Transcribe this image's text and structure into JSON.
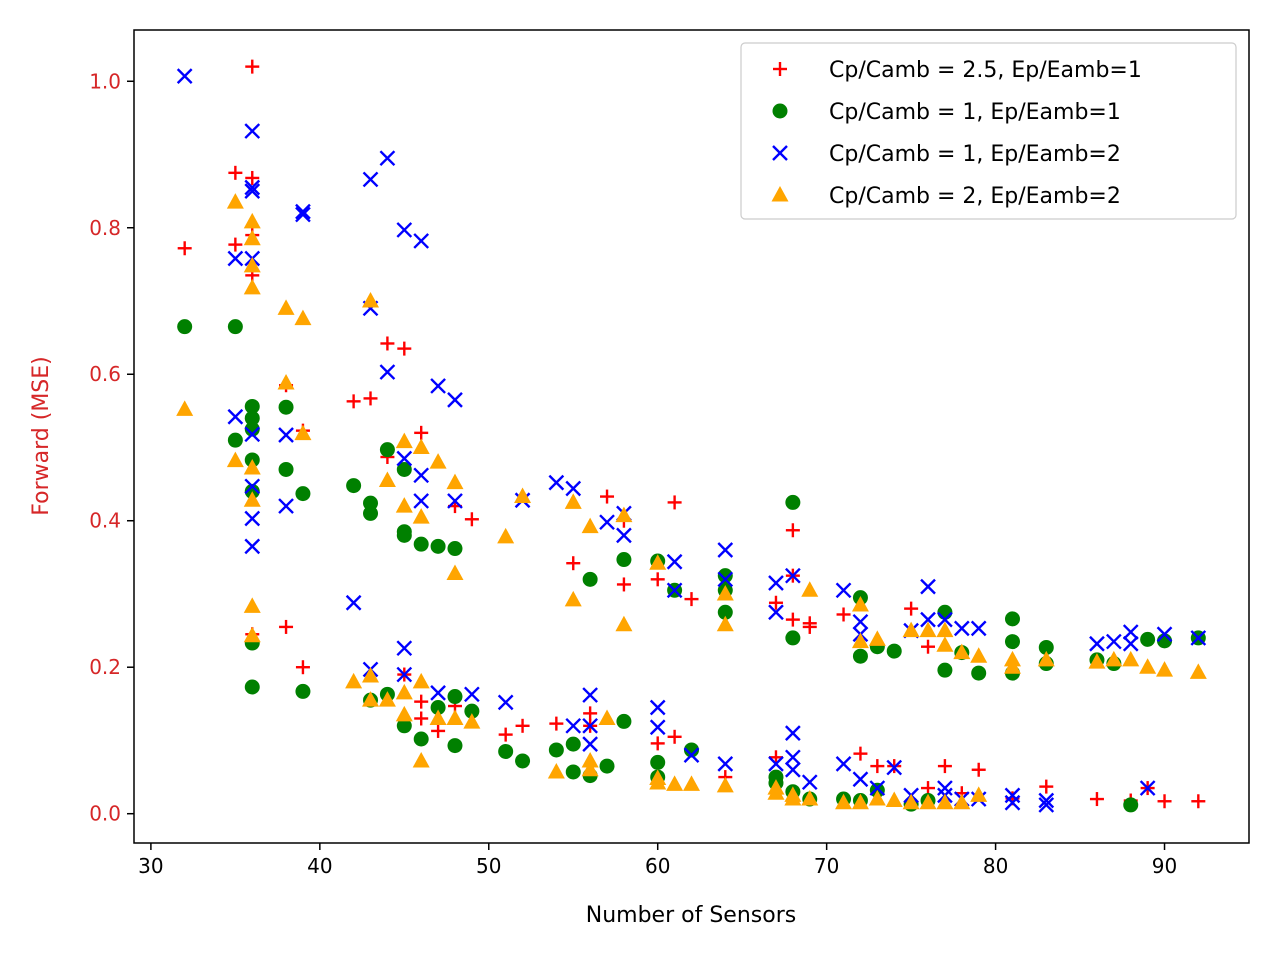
{
  "chart_data": {
    "type": "scatter",
    "title": "",
    "xlabel": "Number of Sensors",
    "ylabel": "Forward (MSE)",
    "ylabel_color": "#d62728",
    "ytick_color": "#d62728",
    "xlim": [
      29,
      95
    ],
    "ylim": [
      -0.04,
      1.07
    ],
    "xticks": [
      30,
      40,
      50,
      60,
      70,
      80,
      90
    ],
    "yticks": [
      0.0,
      0.2,
      0.4,
      0.6,
      0.8,
      1.0
    ],
    "grid": false,
    "legend_position": "top-right",
    "series": [
      {
        "name": "Cp/Camb = 2.5, Ep/Eamb=1",
        "marker": "plus",
        "color": "#ff0000",
        "points": [
          [
            32,
            0.772
          ],
          [
            35,
            0.875
          ],
          [
            35,
            0.777
          ],
          [
            36,
            1.02
          ],
          [
            36,
            0.868
          ],
          [
            36,
            0.79
          ],
          [
            36,
            0.735
          ],
          [
            36,
            0.245
          ],
          [
            38,
            0.585
          ],
          [
            38,
            0.255
          ],
          [
            39,
            0.523
          ],
          [
            39,
            0.2
          ],
          [
            42,
            0.563
          ],
          [
            43,
            0.567
          ],
          [
            44,
            0.642
          ],
          [
            44,
            0.487
          ],
          [
            45,
            0.635
          ],
          [
            45,
            0.19
          ],
          [
            46,
            0.52
          ],
          [
            46,
            0.153
          ],
          [
            46,
            0.13
          ],
          [
            47,
            0.113
          ],
          [
            48,
            0.42
          ],
          [
            48,
            0.147
          ],
          [
            49,
            0.402
          ],
          [
            51,
            0.108
          ],
          [
            52,
            0.12
          ],
          [
            54,
            0.123
          ],
          [
            55,
            0.342
          ],
          [
            56,
            0.137
          ],
          [
            56,
            0.12
          ],
          [
            57,
            0.433
          ],
          [
            58,
            0.313
          ],
          [
            58,
            0.4
          ],
          [
            60,
            0.32
          ],
          [
            60,
            0.096
          ],
          [
            61,
            0.425
          ],
          [
            61,
            0.305
          ],
          [
            61,
            0.105
          ],
          [
            62,
            0.293
          ],
          [
            64,
            0.05
          ],
          [
            67,
            0.288
          ],
          [
            67,
            0.077
          ],
          [
            68,
            0.387
          ],
          [
            68,
            0.325
          ],
          [
            68,
            0.265
          ],
          [
            69,
            0.26
          ],
          [
            69,
            0.255
          ],
          [
            71,
            0.272
          ],
          [
            72,
            0.082
          ],
          [
            73,
            0.065
          ],
          [
            74,
            0.065
          ],
          [
            75,
            0.28
          ],
          [
            76,
            0.228
          ],
          [
            76,
            0.035
          ],
          [
            77,
            0.065
          ],
          [
            78,
            0.028
          ],
          [
            79,
            0.06
          ],
          [
            81,
            0.021
          ],
          [
            83,
            0.037
          ],
          [
            86,
            0.02
          ],
          [
            88,
            0.018
          ],
          [
            89,
            0.035
          ],
          [
            90,
            0.017
          ],
          [
            92,
            0.017
          ]
        ]
      },
      {
        "name": "Cp/Camb = 1, Ep/Eamb=1",
        "marker": "circle",
        "color": "#008000",
        "points": [
          [
            32,
            0.665
          ],
          [
            35,
            0.665
          ],
          [
            35,
            0.51
          ],
          [
            36,
            0.556
          ],
          [
            36,
            0.54
          ],
          [
            36,
            0.525
          ],
          [
            36,
            0.483
          ],
          [
            36,
            0.44
          ],
          [
            36,
            0.233
          ],
          [
            36,
            0.173
          ],
          [
            38,
            0.555
          ],
          [
            38,
            0.47
          ],
          [
            39,
            0.437
          ],
          [
            39,
            0.167
          ],
          [
            42,
            0.448
          ],
          [
            43,
            0.424
          ],
          [
            43,
            0.41
          ],
          [
            43,
            0.155
          ],
          [
            44,
            0.497
          ],
          [
            44,
            0.163
          ],
          [
            45,
            0.47
          ],
          [
            45,
            0.385
          ],
          [
            45,
            0.38
          ],
          [
            45,
            0.12
          ],
          [
            46,
            0.368
          ],
          [
            46,
            0.102
          ],
          [
            47,
            0.365
          ],
          [
            47,
            0.145
          ],
          [
            48,
            0.362
          ],
          [
            48,
            0.16
          ],
          [
            48,
            0.093
          ],
          [
            49,
            0.14
          ],
          [
            51,
            0.085
          ],
          [
            52,
            0.072
          ],
          [
            54,
            0.087
          ],
          [
            55,
            0.095
          ],
          [
            55,
            0.057
          ],
          [
            56,
            0.32
          ],
          [
            56,
            0.052
          ],
          [
            57,
            0.065
          ],
          [
            58,
            0.347
          ],
          [
            58,
            0.126
          ],
          [
            60,
            0.345
          ],
          [
            60,
            0.07
          ],
          [
            60,
            0.05
          ],
          [
            61,
            0.305
          ],
          [
            62,
            0.087
          ],
          [
            64,
            0.325
          ],
          [
            64,
            0.305
          ],
          [
            64,
            0.275
          ],
          [
            67,
            0.05
          ],
          [
            67,
            0.042
          ],
          [
            68,
            0.425
          ],
          [
            68,
            0.24
          ],
          [
            68,
            0.03
          ],
          [
            69,
            0.02
          ],
          [
            71,
            0.02
          ],
          [
            72,
            0.295
          ],
          [
            72,
            0.215
          ],
          [
            72,
            0.018
          ],
          [
            73,
            0.228
          ],
          [
            73,
            0.032
          ],
          [
            74,
            0.222
          ],
          [
            75,
            0.013
          ],
          [
            76,
            0.018
          ],
          [
            77,
            0.275
          ],
          [
            77,
            0.196
          ],
          [
            78,
            0.22
          ],
          [
            79,
            0.192
          ],
          [
            81,
            0.266
          ],
          [
            81,
            0.235
          ],
          [
            81,
            0.192
          ],
          [
            83,
            0.227
          ],
          [
            83,
            0.205
          ],
          [
            86,
            0.21
          ],
          [
            87,
            0.205
          ],
          [
            88,
            0.012
          ],
          [
            89,
            0.238
          ],
          [
            90,
            0.236
          ],
          [
            92,
            0.24
          ]
        ]
      },
      {
        "name": "Cp/Camb = 1, Ep/Eamb=2",
        "marker": "x",
        "color": "#0000ff",
        "points": [
          [
            32,
            1.007
          ],
          [
            35,
            0.758
          ],
          [
            35,
            0.542
          ],
          [
            36,
            0.932
          ],
          [
            36,
            0.855
          ],
          [
            36,
            0.85
          ],
          [
            36,
            0.758
          ],
          [
            36,
            0.518
          ],
          [
            36,
            0.447
          ],
          [
            36,
            0.403
          ],
          [
            36,
            0.365
          ],
          [
            38,
            0.517
          ],
          [
            38,
            0.42
          ],
          [
            39,
            0.822
          ],
          [
            39,
            0.818
          ],
          [
            42,
            0.288
          ],
          [
            43,
            0.866
          ],
          [
            43,
            0.69
          ],
          [
            43,
            0.197
          ],
          [
            44,
            0.895
          ],
          [
            44,
            0.603
          ],
          [
            45,
            0.797
          ],
          [
            45,
            0.485
          ],
          [
            45,
            0.226
          ],
          [
            45,
            0.19
          ],
          [
            46,
            0.782
          ],
          [
            46,
            0.462
          ],
          [
            46,
            0.427
          ],
          [
            47,
            0.584
          ],
          [
            47,
            0.165
          ],
          [
            48,
            0.565
          ],
          [
            48,
            0.427
          ],
          [
            49,
            0.163
          ],
          [
            51,
            0.152
          ],
          [
            52,
            0.428
          ],
          [
            54,
            0.452
          ],
          [
            55,
            0.444
          ],
          [
            55,
            0.12
          ],
          [
            56,
            0.162
          ],
          [
            56,
            0.12
          ],
          [
            56,
            0.095
          ],
          [
            57,
            0.398
          ],
          [
            58,
            0.41
          ],
          [
            58,
            0.38
          ],
          [
            60,
            0.145
          ],
          [
            60,
            0.118
          ],
          [
            61,
            0.344
          ],
          [
            61,
            0.305
          ],
          [
            62,
            0.08
          ],
          [
            64,
            0.36
          ],
          [
            64,
            0.32
          ],
          [
            64,
            0.068
          ],
          [
            67,
            0.315
          ],
          [
            67,
            0.275
          ],
          [
            67,
            0.068
          ],
          [
            68,
            0.325
          ],
          [
            68,
            0.11
          ],
          [
            68,
            0.077
          ],
          [
            68,
            0.06
          ],
          [
            69,
            0.043
          ],
          [
            71,
            0.305
          ],
          [
            71,
            0.068
          ],
          [
            72,
            0.262
          ],
          [
            72,
            0.245
          ],
          [
            72,
            0.047
          ],
          [
            73,
            0.035
          ],
          [
            74,
            0.063
          ],
          [
            75,
            0.25
          ],
          [
            75,
            0.025
          ],
          [
            76,
            0.31
          ],
          [
            76,
            0.265
          ],
          [
            77,
            0.265
          ],
          [
            77,
            0.035
          ],
          [
            77,
            0.025
          ],
          [
            78,
            0.253
          ],
          [
            78,
            0.02
          ],
          [
            79,
            0.253
          ],
          [
            79,
            0.02
          ],
          [
            81,
            0.015
          ],
          [
            81,
            0.025
          ],
          [
            83,
            0.018
          ],
          [
            83,
            0.012
          ],
          [
            86,
            0.232
          ],
          [
            87,
            0.235
          ],
          [
            88,
            0.248
          ],
          [
            88,
            0.232
          ],
          [
            89,
            0.035
          ],
          [
            90,
            0.245
          ],
          [
            92,
            0.24
          ]
        ]
      },
      {
        "name": "Cp/Camb = 2, Ep/Eamb=2",
        "marker": "triangle",
        "color": "#ffa500",
        "points": [
          [
            32,
            0.552
          ],
          [
            35,
            0.835
          ],
          [
            35,
            0.482
          ],
          [
            36,
            0.808
          ],
          [
            36,
            0.785
          ],
          [
            36,
            0.748
          ],
          [
            36,
            0.718
          ],
          [
            36,
            0.472
          ],
          [
            36,
            0.428
          ],
          [
            36,
            0.283
          ],
          [
            36,
            0.243
          ],
          [
            38,
            0.69
          ],
          [
            38,
            0.588
          ],
          [
            39,
            0.676
          ],
          [
            39,
            0.519
          ],
          [
            42,
            0.18
          ],
          [
            43,
            0.7
          ],
          [
            43,
            0.188
          ],
          [
            43,
            0.155
          ],
          [
            44,
            0.455
          ],
          [
            44,
            0.155
          ],
          [
            45,
            0.508
          ],
          [
            45,
            0.42
          ],
          [
            45,
            0.165
          ],
          [
            45,
            0.135
          ],
          [
            46,
            0.5
          ],
          [
            46,
            0.405
          ],
          [
            46,
            0.18
          ],
          [
            46,
            0.072
          ],
          [
            47,
            0.48
          ],
          [
            47,
            0.13
          ],
          [
            48,
            0.452
          ],
          [
            48,
            0.328
          ],
          [
            48,
            0.13
          ],
          [
            49,
            0.125
          ],
          [
            51,
            0.378
          ],
          [
            52,
            0.433
          ],
          [
            54,
            0.057
          ],
          [
            55,
            0.425
          ],
          [
            55,
            0.292
          ],
          [
            56,
            0.392
          ],
          [
            56,
            0.072
          ],
          [
            56,
            0.06
          ],
          [
            57,
            0.13
          ],
          [
            58,
            0.407
          ],
          [
            58,
            0.258
          ],
          [
            60,
            0.342
          ],
          [
            60,
            0.048
          ],
          [
            60,
            0.042
          ],
          [
            61,
            0.04
          ],
          [
            62,
            0.04
          ],
          [
            64,
            0.3
          ],
          [
            64,
            0.258
          ],
          [
            64,
            0.038
          ],
          [
            67,
            0.035
          ],
          [
            67,
            0.028
          ],
          [
            68,
            0.025
          ],
          [
            68,
            0.02
          ],
          [
            69,
            0.305
          ],
          [
            69,
            0.02
          ],
          [
            71,
            0.015
          ],
          [
            72,
            0.285
          ],
          [
            72,
            0.235
          ],
          [
            72,
            0.015
          ],
          [
            73,
            0.238
          ],
          [
            73,
            0.02
          ],
          [
            74,
            0.018
          ],
          [
            75,
            0.25
          ],
          [
            75,
            0.015
          ],
          [
            76,
            0.25
          ],
          [
            76,
            0.015
          ],
          [
            77,
            0.25
          ],
          [
            77,
            0.23
          ],
          [
            77,
            0.015
          ],
          [
            78,
            0.22
          ],
          [
            78,
            0.015
          ],
          [
            79,
            0.215
          ],
          [
            79,
            0.025
          ],
          [
            81,
            0.21
          ],
          [
            81,
            0.2
          ],
          [
            83,
            0.21
          ],
          [
            86,
            0.207
          ],
          [
            87,
            0.21
          ],
          [
            88,
            0.21
          ],
          [
            89,
            0.2
          ],
          [
            90,
            0.196
          ],
          [
            92,
            0.193
          ]
        ]
      }
    ]
  }
}
